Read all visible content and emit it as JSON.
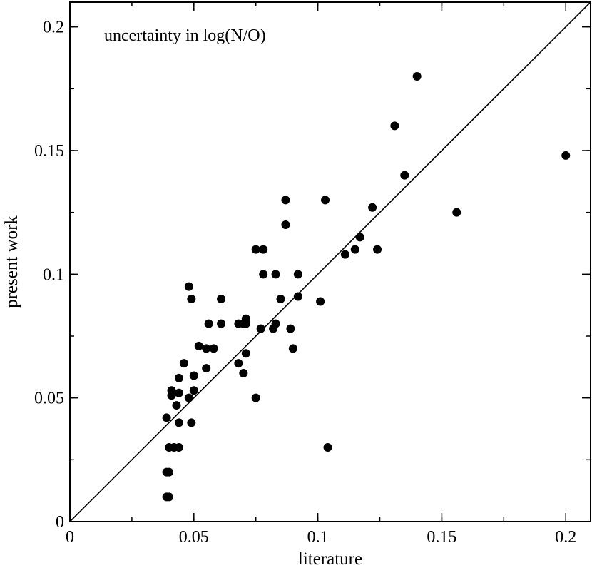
{
  "chart_data": {
    "type": "scatter",
    "title": "",
    "annotation": "uncertainty in log(N/O)",
    "xlabel": "literature",
    "ylabel": "present work",
    "xlim": [
      0,
      0.21
    ],
    "ylim": [
      0,
      0.21
    ],
    "xticks": [
      0,
      0.05,
      0.1,
      0.15,
      0.2
    ],
    "yticks": [
      0,
      0.05,
      0.1,
      0.15,
      0.2
    ],
    "xtick_labels": [
      "0",
      "0.05",
      "0.1",
      "0.15",
      "0.2"
    ],
    "ytick_labels": [
      "0",
      "0.05",
      "0.1",
      "0.15",
      "0.2"
    ],
    "x_minor_step": 0.025,
    "y_minor_step": 0.025,
    "reference_line": {
      "label": "y = x",
      "from": [
        0,
        0
      ],
      "to": [
        0.21,
        0.21
      ]
    },
    "marker_color": "#000000",
    "series": [
      {
        "name": "uncertainty in log(N/O)",
        "points": [
          [
            0.039,
            0.01
          ],
          [
            0.04,
            0.01
          ],
          [
            0.039,
            0.02
          ],
          [
            0.04,
            0.02
          ],
          [
            0.04,
            0.03
          ],
          [
            0.042,
            0.03
          ],
          [
            0.044,
            0.03
          ],
          [
            0.044,
            0.04
          ],
          [
            0.049,
            0.04
          ],
          [
            0.039,
            0.042
          ],
          [
            0.043,
            0.047
          ],
          [
            0.041,
            0.051
          ],
          [
            0.041,
            0.053
          ],
          [
            0.044,
            0.052
          ],
          [
            0.048,
            0.05
          ],
          [
            0.05,
            0.053
          ],
          [
            0.044,
            0.058
          ],
          [
            0.05,
            0.059
          ],
          [
            0.046,
            0.064
          ],
          [
            0.052,
            0.071
          ],
          [
            0.055,
            0.07
          ],
          [
            0.058,
            0.07
          ],
          [
            0.055,
            0.062
          ],
          [
            0.056,
            0.08
          ],
          [
            0.061,
            0.08
          ],
          [
            0.048,
            0.095
          ],
          [
            0.049,
            0.09
          ],
          [
            0.061,
            0.09
          ],
          [
            0.068,
            0.08
          ],
          [
            0.07,
            0.08
          ],
          [
            0.071,
            0.082
          ],
          [
            0.071,
            0.08
          ],
          [
            0.068,
            0.064
          ],
          [
            0.07,
            0.06
          ],
          [
            0.071,
            0.068
          ],
          [
            0.075,
            0.05
          ],
          [
            0.075,
            0.11
          ],
          [
            0.078,
            0.11
          ],
          [
            0.078,
            0.1
          ],
          [
            0.083,
            0.1
          ],
          [
            0.077,
            0.078
          ],
          [
            0.082,
            0.078
          ],
          [
            0.083,
            0.08
          ],
          [
            0.085,
            0.09
          ],
          [
            0.087,
            0.13
          ],
          [
            0.087,
            0.12
          ],
          [
            0.089,
            0.078
          ],
          [
            0.09,
            0.07
          ],
          [
            0.092,
            0.1
          ],
          [
            0.092,
            0.091
          ],
          [
            0.101,
            0.089
          ],
          [
            0.103,
            0.13
          ],
          [
            0.104,
            0.03
          ],
          [
            0.111,
            0.108
          ],
          [
            0.115,
            0.11
          ],
          [
            0.117,
            0.115
          ],
          [
            0.122,
            0.127
          ],
          [
            0.124,
            0.11
          ],
          [
            0.131,
            0.16
          ],
          [
            0.135,
            0.14
          ],
          [
            0.14,
            0.18
          ],
          [
            0.156,
            0.125
          ],
          [
            0.2,
            0.148
          ]
        ]
      }
    ]
  }
}
